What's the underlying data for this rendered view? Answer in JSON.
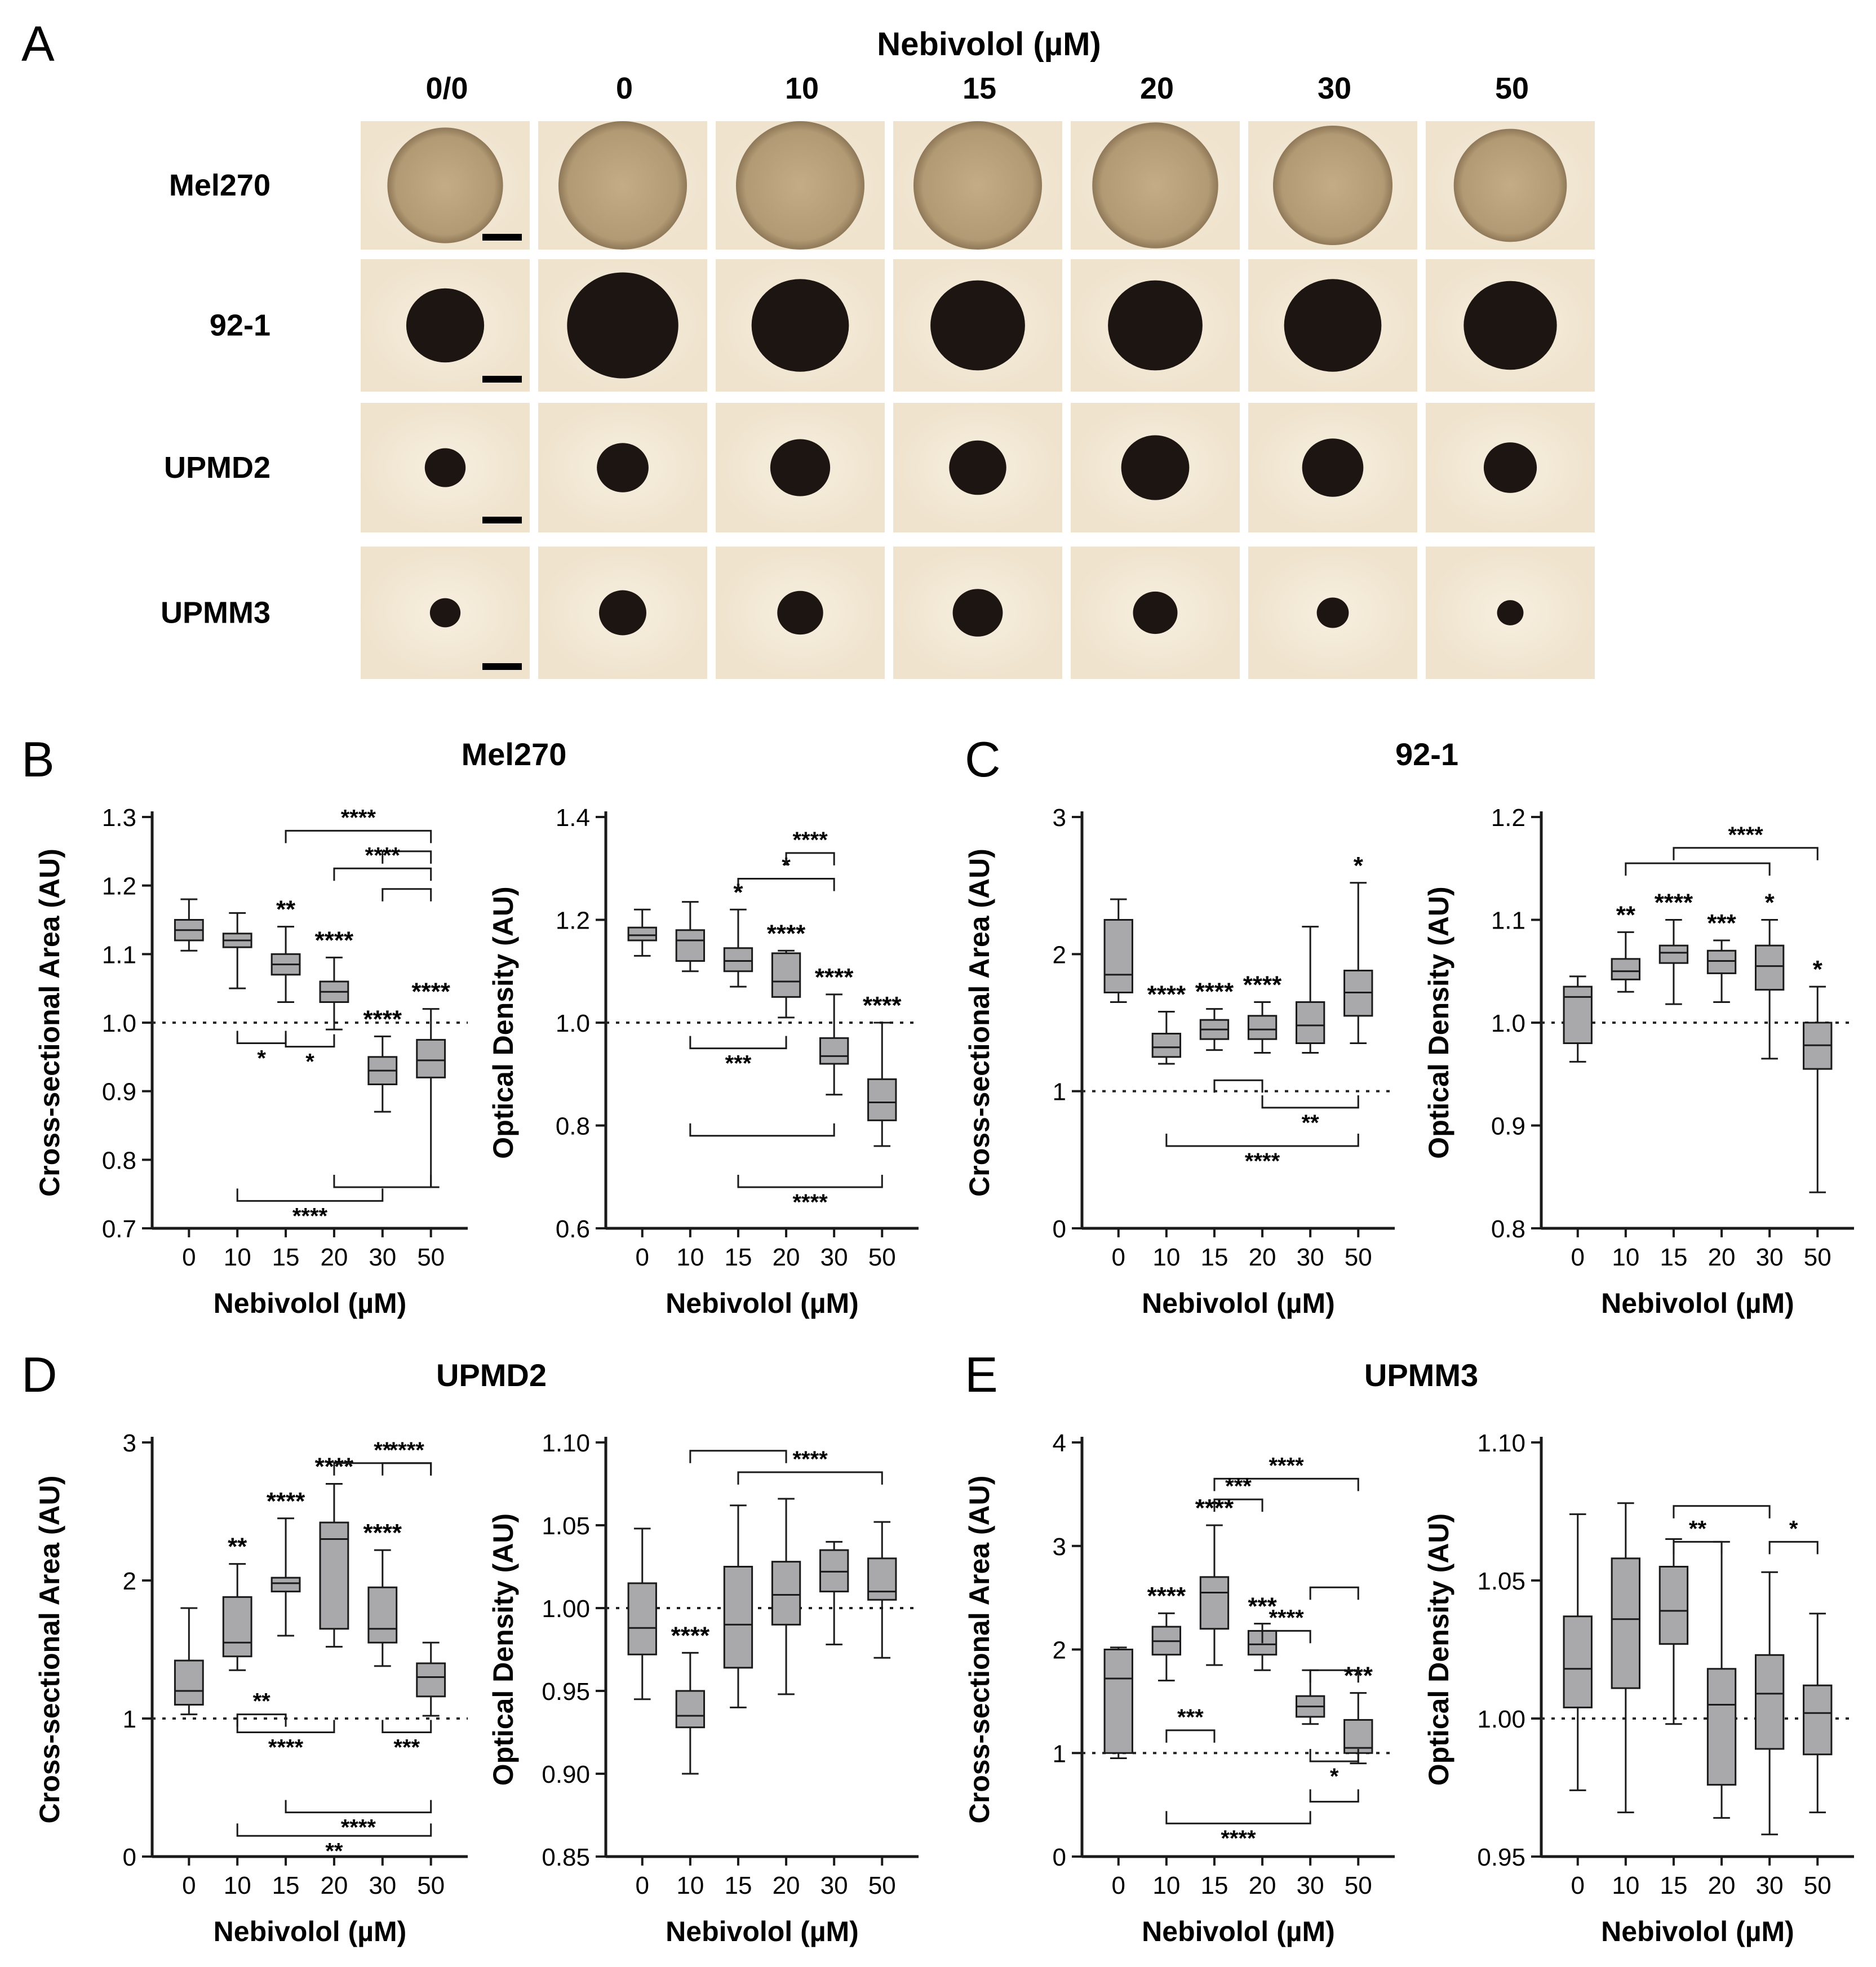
{
  "panel_a": {
    "letter": "A",
    "header": "Nebivolol (µM)",
    "columns": [
      "0/0",
      "0",
      "10",
      "15",
      "20",
      "30",
      "50"
    ],
    "rows": [
      {
        "label": "Mel270",
        "spheroid": "large-light"
      },
      {
        "label": "92-1",
        "spheroid": "medium-dark"
      },
      {
        "label": "UPMD2",
        "spheroid": "small-dark"
      },
      {
        "label": "UPMM3",
        "spheroid": "smallest-dark"
      }
    ],
    "colors": {
      "background": "#efe3cd",
      "spheroid_dark": "#1c1512",
      "spheroid_light": "#b29a74"
    }
  },
  "chart_data": [
    {
      "panel": "B",
      "title": "Mel270",
      "type": "box",
      "ylabel": "Cross-sectional Area (AU)",
      "xlabel": "Nebivolol (µM)",
      "categories": [
        "0",
        "10",
        "15",
        "20",
        "30",
        "50"
      ],
      "ylim": [
        0.7,
        1.3
      ],
      "yticks": [
        "0.7",
        "0.8",
        "0.9",
        "1.0",
        "1.1",
        "1.2",
        "1.3"
      ],
      "reference_line": 1.0,
      "boxes": [
        {
          "min": 1.105,
          "q1": 1.12,
          "median": 1.135,
          "q3": 1.15,
          "max": 1.18,
          "label": ""
        },
        {
          "min": 1.05,
          "q1": 1.11,
          "median": 1.12,
          "q3": 1.13,
          "max": 1.16,
          "label": ""
        },
        {
          "min": 1.03,
          "q1": 1.07,
          "median": 1.085,
          "q3": 1.1,
          "max": 1.14,
          "label": "**"
        },
        {
          "min": 0.99,
          "q1": 1.03,
          "median": 1.045,
          "q3": 1.06,
          "max": 1.095,
          "label": "****"
        },
        {
          "min": 0.87,
          "q1": 0.91,
          "median": 0.93,
          "q3": 0.95,
          "max": 0.98,
          "label": "****"
        },
        {
          "min": 0.76,
          "q1": 0.92,
          "median": 0.945,
          "q3": 0.975,
          "max": 1.02,
          "label": "****"
        }
      ],
      "brackets": [
        {
          "from": "15",
          "to": "50",
          "y": 1.28,
          "label": "****"
        },
        {
          "from": "30",
          "to": "50",
          "y": 1.25,
          "label": ""
        },
        {
          "from": "20",
          "to": "50",
          "y": 1.225,
          "label": "****"
        },
        {
          "from": "30",
          "to": "50",
          "y": 1.195,
          "label": ""
        },
        {
          "from": "10",
          "to": "15",
          "y": 0.97,
          "label": "*"
        },
        {
          "from": "15",
          "to": "20",
          "y": 0.965,
          "label": "*"
        },
        {
          "from": "10",
          "to": "30",
          "y": 0.74,
          "label": "****"
        },
        {
          "from": "20",
          "to": "50",
          "y": 0.76,
          "label": ""
        }
      ]
    },
    {
      "panel": "B",
      "title": "",
      "type": "box",
      "ylabel": "Optical Density (AU)",
      "xlabel": "Nebivolol (µM)",
      "categories": [
        "0",
        "10",
        "15",
        "20",
        "30",
        "50"
      ],
      "ylim": [
        0.6,
        1.4
      ],
      "yticks": [
        "0.6",
        "0.8",
        "1.0",
        "1.2",
        "1.4"
      ],
      "reference_line": 1.0,
      "boxes": [
        {
          "min": 1.13,
          "q1": 1.16,
          "median": 1.17,
          "q3": 1.185,
          "max": 1.22,
          "label": ""
        },
        {
          "min": 1.1,
          "q1": 1.12,
          "median": 1.16,
          "q3": 1.18,
          "max": 1.235,
          "label": ""
        },
        {
          "min": 1.07,
          "q1": 1.1,
          "median": 1.12,
          "q3": 1.145,
          "max": 1.22,
          "label": "*"
        },
        {
          "min": 1.01,
          "q1": 1.05,
          "median": 1.08,
          "q3": 1.135,
          "max": 1.14,
          "label": "****"
        },
        {
          "min": 0.86,
          "q1": 0.92,
          "median": 0.935,
          "q3": 0.97,
          "max": 1.055,
          "label": "****"
        },
        {
          "min": 0.76,
          "q1": 0.81,
          "median": 0.845,
          "q3": 0.89,
          "max": 1.0,
          "label": "****"
        }
      ],
      "brackets": [
        {
          "from": "15",
          "to": "30",
          "y": 1.28,
          "label": "*"
        },
        {
          "from": "20",
          "to": "30",
          "y": 1.33,
          "label": "****"
        },
        {
          "from": "10",
          "to": "20",
          "y": 0.95,
          "label": "***"
        },
        {
          "from": "10",
          "to": "30",
          "y": 0.78,
          "label": ""
        },
        {
          "from": "15",
          "to": "50",
          "y": 0.68,
          "label": "****"
        }
      ]
    },
    {
      "panel": "C",
      "title": "92-1",
      "type": "box",
      "ylabel": "Cross-sectional Area (AU)",
      "xlabel": "Nebivolol (µM)",
      "categories": [
        "0",
        "10",
        "15",
        "20",
        "30",
        "50"
      ],
      "ylim": [
        0,
        3
      ],
      "yticks": [
        "0",
        "1",
        "2",
        "3"
      ],
      "reference_line": 1.0,
      "boxes": [
        {
          "min": 1.65,
          "q1": 1.72,
          "median": 1.85,
          "q3": 2.25,
          "max": 2.4,
          "label": ""
        },
        {
          "min": 1.2,
          "q1": 1.25,
          "median": 1.32,
          "q3": 1.42,
          "max": 1.58,
          "label": "****"
        },
        {
          "min": 1.3,
          "q1": 1.38,
          "median": 1.45,
          "q3": 1.52,
          "max": 1.6,
          "label": "****"
        },
        {
          "min": 1.28,
          "q1": 1.38,
          "median": 1.45,
          "q3": 1.55,
          "max": 1.65,
          "label": "****"
        },
        {
          "min": 1.28,
          "q1": 1.35,
          "median": 1.48,
          "q3": 1.65,
          "max": 2.2,
          "label": ""
        },
        {
          "min": 1.35,
          "q1": 1.55,
          "median": 1.72,
          "q3": 1.88,
          "max": 2.52,
          "label": "*"
        }
      ],
      "brackets": [
        {
          "from": "15",
          "to": "20",
          "y": 1.08,
          "label": ""
        },
        {
          "from": "20",
          "to": "50",
          "y": 0.88,
          "label": "**"
        },
        {
          "from": "10",
          "to": "50",
          "y": 0.6,
          "label": "****"
        }
      ]
    },
    {
      "panel": "C",
      "title": "",
      "type": "box",
      "ylabel": "Optical Density (AU)",
      "xlabel": "Nebivolol (µM)",
      "categories": [
        "0",
        "10",
        "15",
        "20",
        "30",
        "50"
      ],
      "ylim": [
        0.8,
        1.2
      ],
      "yticks": [
        "0.8",
        "0.9",
        "1.0",
        "1.1",
        "1.2"
      ],
      "reference_line": 1.0,
      "boxes": [
        {
          "min": 0.962,
          "q1": 0.98,
          "median": 1.025,
          "q3": 1.035,
          "max": 1.045,
          "label": ""
        },
        {
          "min": 1.03,
          "q1": 1.042,
          "median": 1.05,
          "q3": 1.062,
          "max": 1.088,
          "label": "**"
        },
        {
          "min": 1.018,
          "q1": 1.058,
          "median": 1.068,
          "q3": 1.075,
          "max": 1.1,
          "label": "****"
        },
        {
          "min": 1.02,
          "q1": 1.048,
          "median": 1.06,
          "q3": 1.07,
          "max": 1.08,
          "label": "***"
        },
        {
          "min": 0.965,
          "q1": 1.032,
          "median": 1.055,
          "q3": 1.075,
          "max": 1.1,
          "label": "*"
        },
        {
          "min": 0.835,
          "q1": 0.955,
          "median": 0.978,
          "q3": 1.0,
          "max": 1.035,
          "label": "*"
        }
      ],
      "brackets": [
        {
          "from": "10",
          "to": "30",
          "y": 1.155,
          "label": ""
        },
        {
          "from": "15",
          "to": "50",
          "y": 1.17,
          "label": "****"
        }
      ]
    },
    {
      "panel": "D",
      "title": "UPMD2",
      "type": "box",
      "ylabel": "Cross-sectional Area (AU)",
      "xlabel": "Nebivolol (µM)",
      "categories": [
        "0",
        "10",
        "15",
        "20",
        "30",
        "50"
      ],
      "ylim": [
        0,
        3
      ],
      "yticks": [
        "0",
        "1",
        "2",
        "3"
      ],
      "reference_line": 1.0,
      "boxes": [
        {
          "min": 1.03,
          "q1": 1.1,
          "median": 1.2,
          "q3": 1.42,
          "max": 1.8,
          "label": ""
        },
        {
          "min": 1.35,
          "q1": 1.45,
          "median": 1.55,
          "q3": 1.88,
          "max": 2.12,
          "label": "**"
        },
        {
          "min": 1.6,
          "q1": 1.92,
          "median": 1.98,
          "q3": 2.02,
          "max": 2.45,
          "label": "****"
        },
        {
          "min": 1.52,
          "q1": 1.65,
          "median": 2.3,
          "q3": 2.42,
          "max": 2.7,
          "label": "****"
        },
        {
          "min": 1.38,
          "q1": 1.55,
          "median": 1.65,
          "q3": 1.95,
          "max": 2.22,
          "label": "****"
        },
        {
          "min": 1.02,
          "q1": 1.16,
          "median": 1.3,
          "q3": 1.4,
          "max": 1.55,
          "label": ""
        }
      ],
      "brackets": [
        {
          "from": "20",
          "to": "50",
          "y": 2.85,
          "label": "**"
        },
        {
          "from": "30",
          "to": "50",
          "y": 2.85,
          "label": "****"
        },
        {
          "from": "10",
          "to": "15",
          "y": 1.03,
          "label": "**"
        },
        {
          "from": "10",
          "to": "20",
          "y": 0.9,
          "label": "****"
        },
        {
          "from": "30",
          "to": "50",
          "y": 0.9,
          "label": "***"
        },
        {
          "from": "15",
          "to": "50",
          "y": 0.32,
          "label": "****"
        },
        {
          "from": "10",
          "to": "50",
          "y": 0.15,
          "label": "**"
        }
      ]
    },
    {
      "panel": "D",
      "title": "",
      "type": "box",
      "ylabel": "Optical Density (AU)",
      "xlabel": "Nebivolol (µM)",
      "categories": [
        "0",
        "10",
        "15",
        "20",
        "30",
        "50"
      ],
      "ylim": [
        0.85,
        1.1
      ],
      "yticks": [
        "0.85",
        "0.90",
        "0.95",
        "1.00",
        "1.05",
        "1.10"
      ],
      "reference_line": 1.0,
      "boxes": [
        {
          "min": 0.945,
          "q1": 0.972,
          "median": 0.988,
          "q3": 1.015,
          "max": 1.048,
          "label": ""
        },
        {
          "min": 0.9,
          "q1": 0.928,
          "median": 0.935,
          "q3": 0.95,
          "max": 0.973,
          "label": "****"
        },
        {
          "min": 0.94,
          "q1": 0.964,
          "median": 0.99,
          "q3": 1.025,
          "max": 1.062,
          "label": ""
        },
        {
          "min": 0.948,
          "q1": 0.99,
          "median": 1.008,
          "q3": 1.028,
          "max": 1.066,
          "label": ""
        },
        {
          "min": 0.978,
          "q1": 1.01,
          "median": 1.022,
          "q3": 1.035,
          "max": 1.04,
          "label": ""
        },
        {
          "min": 0.97,
          "q1": 1.005,
          "median": 1.01,
          "q3": 1.03,
          "max": 1.052,
          "label": ""
        }
      ],
      "brackets": [
        {
          "from": "10",
          "to": "20",
          "y": 1.095,
          "label": ""
        },
        {
          "from": "15",
          "to": "50",
          "y": 1.082,
          "label": "****"
        }
      ]
    },
    {
      "panel": "E",
      "title": "UPMM3",
      "type": "box",
      "ylabel": "Cross-sectional Area (AU)",
      "xlabel": "Nebivolol (µM)",
      "categories": [
        "0",
        "10",
        "15",
        "20",
        "30",
        "50"
      ],
      "ylim": [
        0,
        4
      ],
      "yticks": [
        "0",
        "1",
        "2",
        "3",
        "4"
      ],
      "reference_line": 1.0,
      "boxes": [
        {
          "min": 0.95,
          "q1": 1.0,
          "median": 1.72,
          "q3": 2.0,
          "max": 2.02,
          "label": ""
        },
        {
          "min": 1.7,
          "q1": 1.95,
          "median": 2.08,
          "q3": 2.22,
          "max": 2.35,
          "label": "****"
        },
        {
          "min": 1.85,
          "q1": 2.2,
          "median": 2.55,
          "q3": 2.7,
          "max": 3.2,
          "label": "****"
        },
        {
          "min": 1.8,
          "q1": 1.95,
          "median": 2.05,
          "q3": 2.18,
          "max": 2.25,
          "label": "***"
        },
        {
          "min": 1.28,
          "q1": 1.35,
          "median": 1.45,
          "q3": 1.55,
          "max": 1.8,
          "label": ""
        },
        {
          "min": 0.9,
          "q1": 1.0,
          "median": 1.05,
          "q3": 1.32,
          "max": 1.58,
          "label": "***"
        }
      ],
      "brackets": [
        {
          "from": "15",
          "to": "50",
          "y": 3.65,
          "label": "****"
        },
        {
          "from": "15",
          "to": "20",
          "y": 3.45,
          "label": "***"
        },
        {
          "from": "30",
          "to": "50",
          "y": 2.6,
          "label": ""
        },
        {
          "from": "20",
          "to": "30",
          "y": 2.18,
          "label": "****"
        },
        {
          "from": "30",
          "to": "50",
          "y": 1.8,
          "label": ""
        },
        {
          "from": "10",
          "to": "15",
          "y": 1.22,
          "label": "***"
        },
        {
          "from": "30",
          "to": "50",
          "y": 0.92,
          "label": "*"
        },
        {
          "from": "30",
          "to": "50",
          "y": 0.53,
          "label": ""
        },
        {
          "from": "10",
          "to": "30",
          "y": 0.32,
          "label": "****"
        }
      ]
    },
    {
      "panel": "E",
      "title": "",
      "type": "box",
      "ylabel": "Optical Density (AU)",
      "xlabel": "Nebivolol (µM)",
      "categories": [
        "0",
        "10",
        "15",
        "20",
        "30",
        "50"
      ],
      "ylim": [
        0.95,
        1.1
      ],
      "yticks": [
        "0.95",
        "1.00",
        "1.05",
        "1.10"
      ],
      "reference_line": 1.0,
      "boxes": [
        {
          "min": 0.974,
          "q1": 1.004,
          "median": 1.018,
          "q3": 1.037,
          "max": 1.074,
          "label": ""
        },
        {
          "min": 0.966,
          "q1": 1.011,
          "median": 1.036,
          "q3": 1.058,
          "max": 1.078,
          "label": ""
        },
        {
          "min": 0.998,
          "q1": 1.027,
          "median": 1.039,
          "q3": 1.055,
          "max": 1.065,
          "label": ""
        },
        {
          "min": 0.964,
          "q1": 0.976,
          "median": 1.005,
          "q3": 1.018,
          "max": 1.064,
          "label": ""
        },
        {
          "min": 0.958,
          "q1": 0.989,
          "median": 1.009,
          "q3": 1.023,
          "max": 1.053,
          "label": ""
        },
        {
          "min": 0.966,
          "q1": 0.987,
          "median": 1.002,
          "q3": 1.012,
          "max": 1.038,
          "label": ""
        }
      ],
      "brackets": [
        {
          "from": "15",
          "to": "30",
          "y": 1.077,
          "label": ""
        },
        {
          "from": "15",
          "to": "20",
          "y": 1.064,
          "label": "**"
        },
        {
          "from": "30",
          "to": "50",
          "y": 1.064,
          "label": "*"
        }
      ]
    }
  ],
  "panel_letters": [
    "B",
    "C",
    "D",
    "E"
  ],
  "colors": {
    "box_fill": "#a9a9ab",
    "line": "#1a1a1a",
    "reference": "#222222"
  }
}
